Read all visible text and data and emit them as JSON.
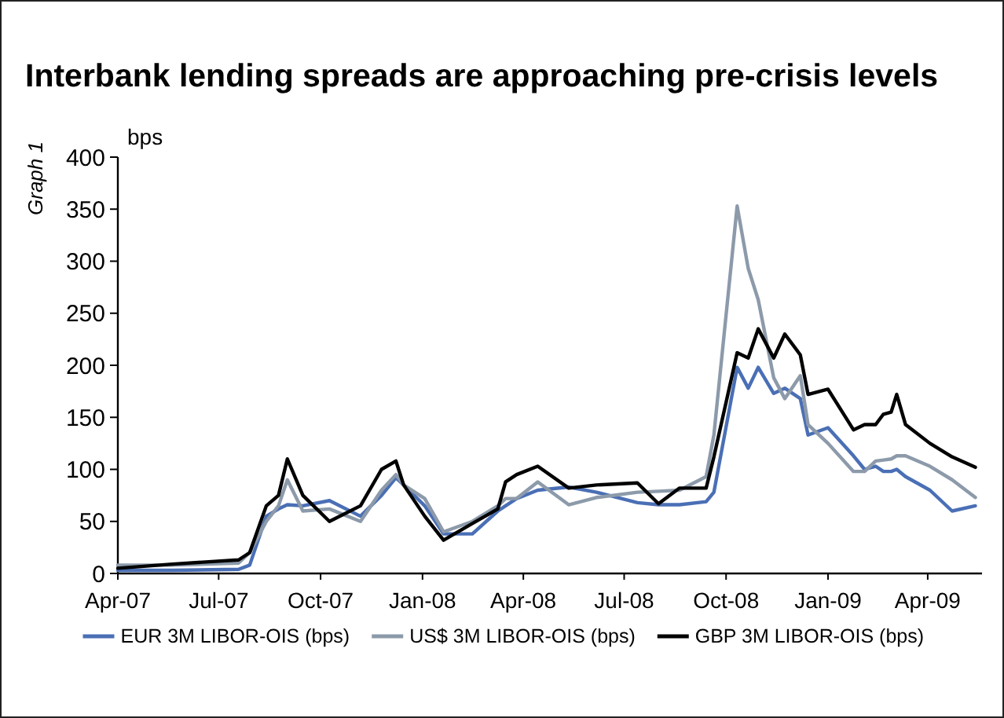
{
  "chart_data": {
    "type": "line",
    "title": "Interbank lending spreads are approaching pre-crisis levels",
    "ylabel": "bps",
    "annotations": [
      "Graph 1"
    ],
    "x": [
      "2007-04-01",
      "2007-05-20",
      "2007-07-19",
      "2007-07-29",
      "2007-08-13",
      "2007-08-24",
      "2007-09-01",
      "2007-09-15",
      "2007-10-09",
      "2007-11-06",
      "2007-11-25",
      "2007-12-08",
      "2007-12-15",
      "2008-01-03",
      "2008-01-20",
      "2008-02-15",
      "2008-03-09",
      "2008-03-16",
      "2008-03-26",
      "2008-04-14",
      "2008-05-12",
      "2008-06-06",
      "2008-07-13",
      "2008-08-01",
      "2008-08-20",
      "2008-09-13",
      "2008-09-20",
      "2008-10-11",
      "2008-10-21",
      "2008-10-30",
      "2008-11-13",
      "2008-11-23",
      "2008-12-07",
      "2008-12-14",
      "2009-01-01",
      "2009-01-24",
      "2009-02-03",
      "2009-02-13",
      "2009-02-20",
      "2009-02-27",
      "2009-03-04",
      "2009-03-12",
      "2009-04-03",
      "2009-04-23",
      "2009-05-14"
    ],
    "series": [
      {
        "name": "EUR 3M LIBOR-OIS (bps)",
        "color": "#4a6fb5",
        "values": [
          3,
          3,
          4,
          8,
          55,
          62,
          66,
          65,
          70,
          55,
          75,
          92,
          85,
          65,
          38,
          38,
          60,
          65,
          72,
          80,
          83,
          78,
          68,
          66,
          66,
          69,
          78,
          198,
          178,
          198,
          173,
          178,
          168,
          133,
          140,
          113,
          100,
          103,
          98,
          98,
          100,
          93,
          80,
          60,
          65
        ]
      },
      {
        "name": "US$ 3M LIBOR-OIS (bps)",
        "color": "#8c9aaa",
        "values": [
          8,
          8,
          10,
          20,
          50,
          65,
          90,
          60,
          62,
          50,
          80,
          95,
          85,
          72,
          40,
          50,
          65,
          72,
          72,
          88,
          66,
          73,
          78,
          79,
          80,
          93,
          133,
          353,
          293,
          263,
          188,
          168,
          190,
          143,
          125,
          98,
          98,
          108,
          109,
          110,
          113,
          113,
          103,
          90,
          73
        ]
      },
      {
        "name": "GBP 3M LIBOR-OIS (bps)",
        "color": "#000000",
        "values": [
          5,
          9,
          13,
          20,
          65,
          75,
          110,
          75,
          50,
          65,
          100,
          108,
          85,
          55,
          32,
          48,
          62,
          88,
          95,
          103,
          82,
          85,
          87,
          67,
          82,
          82,
          112,
          212,
          207,
          235,
          207,
          230,
          210,
          172,
          177,
          138,
          143,
          143,
          153,
          155,
          172,
          143,
          125,
          112,
          102
        ]
      }
    ],
    "xlim": [
      "2007-04-01",
      "2009-05-20"
    ],
    "xticks": [
      {
        "value": "2007-04-01",
        "label": "Apr-07"
      },
      {
        "value": "2007-07-01",
        "label": "Jul-07"
      },
      {
        "value": "2007-10-01",
        "label": "Oct-07"
      },
      {
        "value": "2008-01-01",
        "label": "Jan-08"
      },
      {
        "value": "2008-04-01",
        "label": "Apr-08"
      },
      {
        "value": "2008-07-01",
        "label": "Jul-08"
      },
      {
        "value": "2008-10-01",
        "label": "Oct-08"
      },
      {
        "value": "2009-01-01",
        "label": "Jan-09"
      },
      {
        "value": "2009-04-01",
        "label": "Apr-09"
      }
    ],
    "ylim": [
      0,
      400
    ],
    "yticks": [
      0,
      50,
      100,
      150,
      200,
      250,
      300,
      350,
      400
    ],
    "grid": false,
    "legend": "bottom",
    "marker": "none",
    "line_style": "solid"
  }
}
